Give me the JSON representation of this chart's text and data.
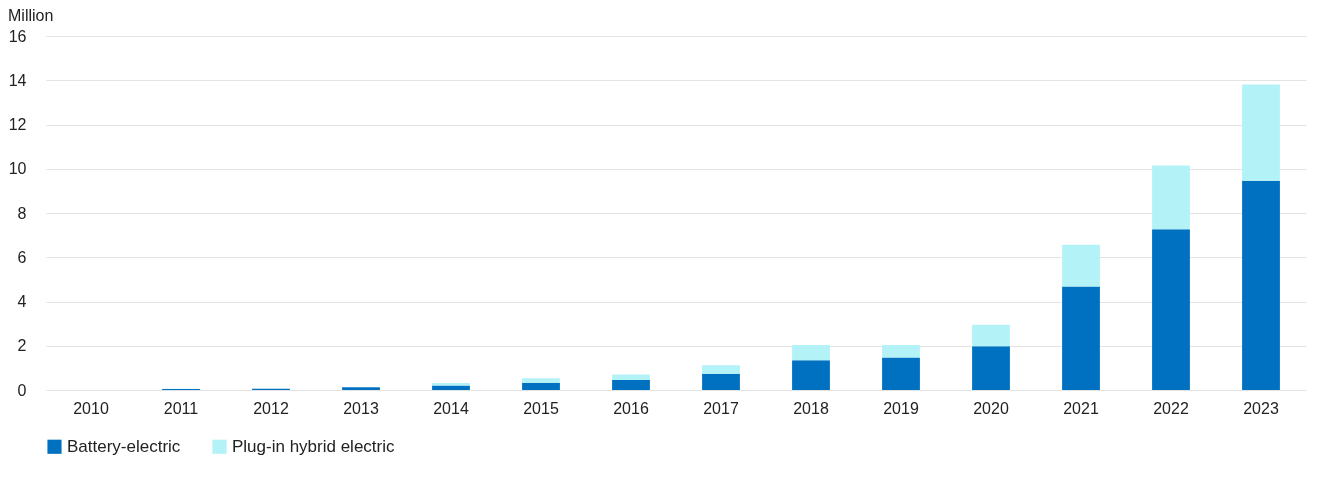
{
  "chart_data": {
    "type": "bar",
    "ylabel": "Million",
    "stacked": true,
    "categories": [
      "2010",
      "2011",
      "2012",
      "2013",
      "2014",
      "2015",
      "2016",
      "2017",
      "2018",
      "2019",
      "2020",
      "2021",
      "2022",
      "2023"
    ],
    "series": [
      {
        "name": "Battery-electric",
        "color": "#0070c0",
        "values": [
          null,
          0.04,
          0.06,
          0.12,
          0.2,
          0.33,
          0.45,
          0.73,
          1.34,
          1.47,
          1.98,
          4.68,
          7.26,
          9.46
        ]
      },
      {
        "name": "Plug-in hybrid electric",
        "color": "#b3f3f7",
        "values": [
          null,
          0.02,
          null,
          null,
          0.12,
          0.2,
          0.25,
          0.39,
          0.69,
          0.56,
          0.97,
          1.89,
          2.89,
          4.35
        ]
      }
    ],
    "ylim": [
      0,
      16
    ],
    "yticks": [
      0,
      2,
      4,
      6,
      8,
      10,
      12,
      14,
      16
    ],
    "grid": "y",
    "legend": "bottom"
  }
}
